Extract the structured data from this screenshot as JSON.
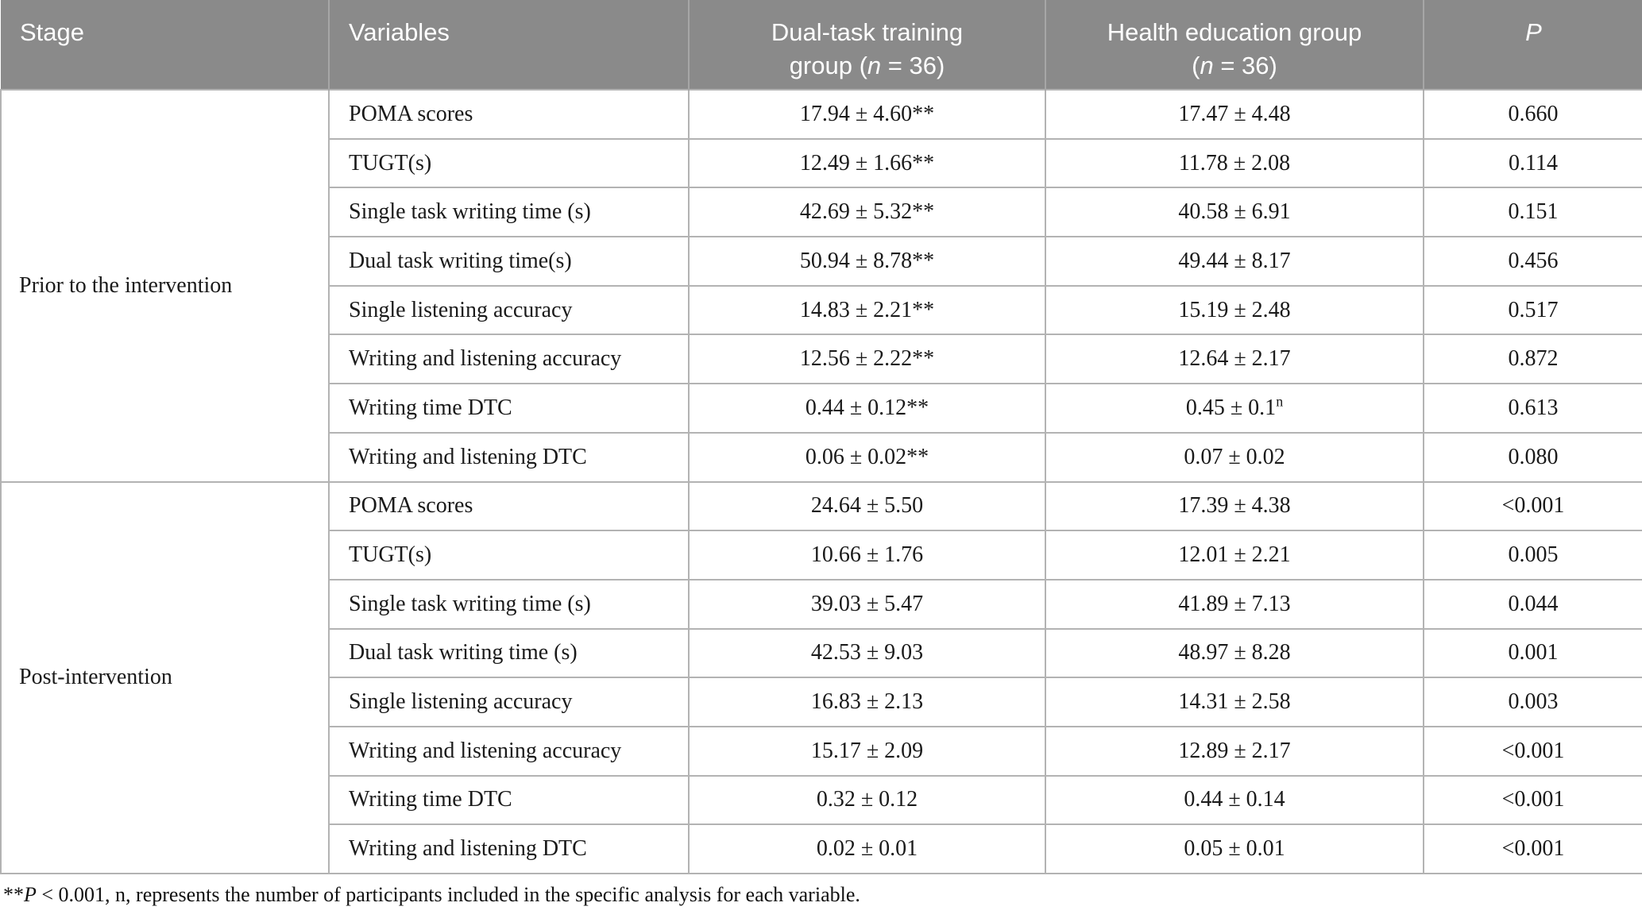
{
  "table": {
    "headers": [
      {
        "id": "stage",
        "align": "left",
        "lines": [
          [
            {
              "t": "Stage"
            }
          ]
        ]
      },
      {
        "id": "variables",
        "align": "left",
        "lines": [
          [
            {
              "t": "Variables"
            }
          ]
        ]
      },
      {
        "id": "dual-task-group",
        "align": "center",
        "lines": [
          [
            {
              "t": "Dual-task training"
            }
          ],
          [
            {
              "t": "group ("
            },
            {
              "t": "n",
              "i": true
            },
            {
              "t": " = 36)"
            }
          ]
        ]
      },
      {
        "id": "health-education-group",
        "align": "center",
        "lines": [
          [
            {
              "t": "Health education group"
            }
          ],
          [
            {
              "t": "("
            },
            {
              "t": "n",
              "i": true
            },
            {
              "t": " = 36)"
            }
          ]
        ]
      },
      {
        "id": "p-value",
        "align": "center",
        "lines": [
          [
            {
              "t": "P",
              "i": true
            }
          ]
        ]
      }
    ],
    "sections": [
      {
        "stage": "Prior to the intervention",
        "rows": [
          {
            "variable": "POMA scores",
            "dual": "17.94 ± 4.60**",
            "health": "17.47 ± 4.48",
            "p": "0.660"
          },
          {
            "variable": "TUGT(s)",
            "dual": "12.49 ± 1.66**",
            "health": "11.78 ± 2.08",
            "p": "0.114"
          },
          {
            "variable": "Single task writing time (s)",
            "dual": "42.69 ± 5.32**",
            "health": "40.58 ± 6.91",
            "p": "0.151"
          },
          {
            "variable": "Dual task writing time(s)",
            "dual": "50.94 ± 8.78**",
            "health": "49.44 ± 8.17",
            "p": "0.456"
          },
          {
            "variable": "Single listening accuracy",
            "dual": "14.83 ± 2.21**",
            "health": "15.19 ± 2.48",
            "p": "0.517"
          },
          {
            "variable": "Writing and listening accuracy",
            "dual": "12.56 ± 2.22**",
            "health": "12.64 ± 2.17",
            "p": "0.872"
          },
          {
            "variable": "Writing time DTC",
            "dual": "0.44 ± 0.12**",
            "health": "0.45 ± 0.1",
            "health_sup": "n",
            "p": "0.613"
          },
          {
            "variable": "Writing and listening DTC",
            "dual": "0.06 ± 0.02**",
            "health": "0.07 ± 0.02",
            "p": "0.080"
          }
        ]
      },
      {
        "stage": "Post-intervention",
        "rows": [
          {
            "variable": "POMA scores",
            "dual": "24.64 ± 5.50",
            "health": "17.39 ± 4.38",
            "p": "<0.001"
          },
          {
            "variable": "TUGT(s)",
            "dual": "10.66 ± 1.76",
            "health": "12.01 ± 2.21",
            "p": "0.005"
          },
          {
            "variable": "Single task writing time (s)",
            "dual": "39.03 ± 5.47",
            "health": "41.89 ± 7.13",
            "p": "0.044"
          },
          {
            "variable": "Dual task writing time (s)",
            "dual": "42.53 ± 9.03",
            "health": "48.97 ± 8.28",
            "p": "0.001"
          },
          {
            "variable": "Single listening accuracy",
            "dual": "16.83 ± 2.13",
            "health": "14.31 ± 2.58",
            "p": "0.003"
          },
          {
            "variable": "Writing and listening accuracy",
            "dual": "15.17 ± 2.09",
            "health": "12.89 ± 2.17",
            "p": "<0.001"
          },
          {
            "variable": "Writing time DTC",
            "dual": "0.32 ± 0.12",
            "health": "0.44 ± 0.14",
            "p": "<0.001"
          },
          {
            "variable": "Writing and listening DTC",
            "dual": "0.02 ± 0.01",
            "health": "0.05 ± 0.01",
            "p": "<0.001"
          }
        ]
      }
    ]
  },
  "footnote": {
    "marker": "**",
    "p_symbol": "P",
    "text": " < 0.001, n, represents the number of participants included in the specific analysis for each variable."
  }
}
